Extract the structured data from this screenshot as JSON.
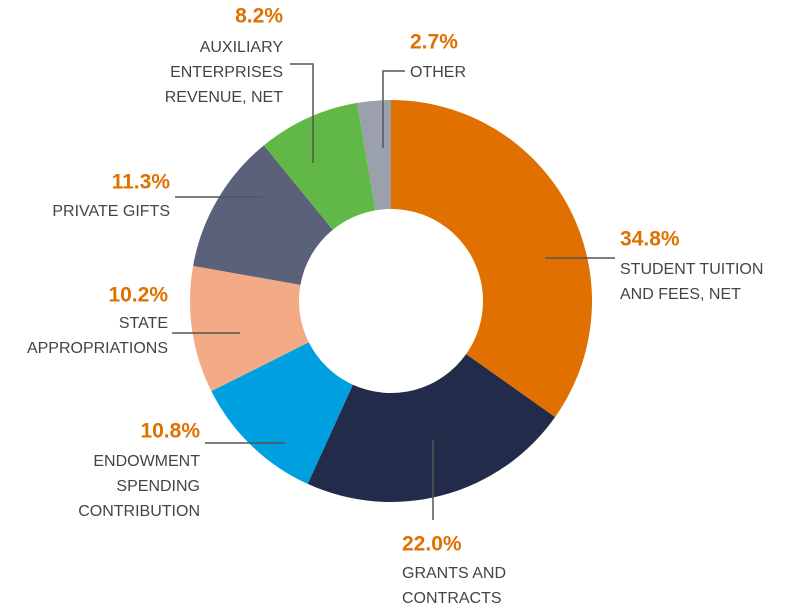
{
  "chart_data": {
    "type": "donut",
    "categories": [
      "STUDENT TUITION\nAND FEES, NET",
      "GRANTS AND\nCONTRACTS",
      "ENDOWMENT\nSPENDING\nCONTRIBUTION",
      "STATE\nAPPROPRIATIONS",
      "PRIVATE GIFTS",
      "AUXILIARY\nENTERPRISES\nREVENUE, NET",
      "OTHER"
    ],
    "values": [
      34.8,
      22.0,
      10.8,
      10.2,
      11.3,
      8.2,
      2.7
    ],
    "value_labels": [
      "34.8%",
      "22.0%",
      "10.8%",
      "10.2%",
      "11.3%",
      "8.2%",
      "2.7%"
    ],
    "colors": [
      "#e07000",
      "#232b4b",
      "#009fe0",
      "#f2ab85",
      "#5a6178",
      "#62b847",
      "#9aa0ac"
    ]
  }
}
